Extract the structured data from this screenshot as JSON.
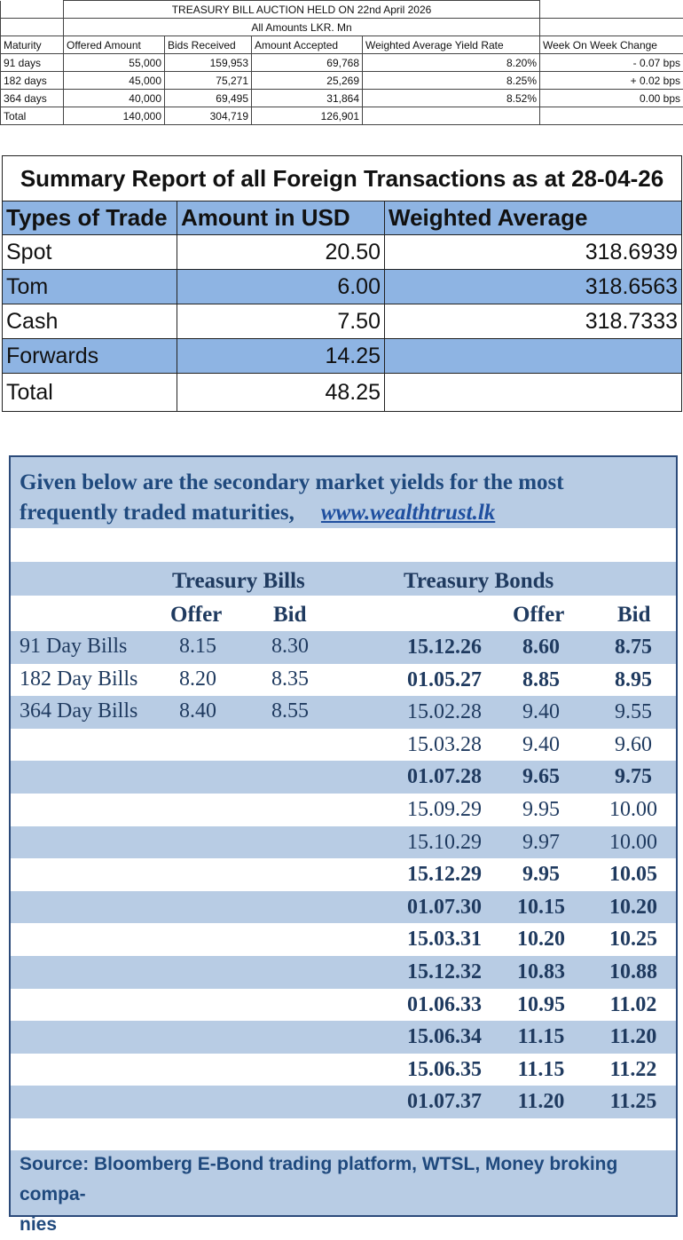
{
  "auction": {
    "title": "TREASURY BILL AUCTION HELD ON 22nd April 2026",
    "subtitle": "All Amounts LKR. Mn",
    "headers": [
      "Maturity",
      "Offered Amount",
      "Bids Received",
      "Amount Accepted",
      "Weighted Average Yield Rate",
      "Week On Week Change"
    ],
    "rows": [
      [
        "91 days",
        "55,000",
        "159,953",
        "69,768",
        "8.20%",
        "- 0.07 bps"
      ],
      [
        "182 days",
        "45,000",
        "75,271",
        "25,269",
        "8.25%",
        "+ 0.02 bps"
      ],
      [
        "364 days",
        "40,000",
        "69,495",
        "31,864",
        "8.52%",
        "0.00 bps"
      ],
      [
        "Total",
        "140,000",
        "304,719",
        "126,901",
        "",
        ""
      ]
    ]
  },
  "fx": {
    "title": "Summary Report of all Foreign Transactions as at 28-04-26",
    "headers": [
      "Types of Trade",
      "Amount in USD",
      "Weighted Average"
    ],
    "rows": [
      [
        "Spot",
        "20.50",
        "318.6939"
      ],
      [
        "Tom",
        "6.00",
        "318.6563"
      ],
      [
        "Cash",
        "7.50",
        "318.7333"
      ],
      [
        "Forwards",
        "14.25",
        ""
      ],
      [
        "Total",
        "48.25",
        ""
      ]
    ]
  },
  "secondary": {
    "intro_line1": "Given below are the secondary market yields for the most",
    "intro_line2": "frequently traded maturities,",
    "link": "www.wealthtrust.lk",
    "bills_heading": "Treasury Bills",
    "bonds_heading": "Treasury Bonds",
    "offer_label": "Offer",
    "bid_label": "Bid",
    "bills": [
      {
        "name": "91 Day Bills",
        "offer": "8.15",
        "bid": "8.30"
      },
      {
        "name": "182 Day Bills",
        "offer": "8.20",
        "bid": "8.35"
      },
      {
        "name": "364 Day Bills",
        "offer": "8.40",
        "bid": "8.55"
      }
    ],
    "bonds": [
      {
        "maturity": "15.12.26",
        "offer": "8.60",
        "bid": "8.75",
        "bold": true
      },
      {
        "maturity": "01.05.27",
        "offer": "8.85",
        "bid": "8.95",
        "bold": true
      },
      {
        "maturity": "15.02.28",
        "offer": "9.40",
        "bid": "9.55",
        "bold": false
      },
      {
        "maturity": "15.03.28",
        "offer": "9.40",
        "bid": "9.60",
        "bold": false
      },
      {
        "maturity": "01.07.28",
        "offer": "9.65",
        "bid": "9.75",
        "bold": true
      },
      {
        "maturity": "15.09.29",
        "offer": "9.95",
        "bid": "10.00",
        "bold": false
      },
      {
        "maturity": "15.10.29",
        "offer": "9.97",
        "bid": "10.00",
        "bold": false
      },
      {
        "maturity": "15.12.29",
        "offer": "9.95",
        "bid": "10.05",
        "bold": true
      },
      {
        "maturity": "01.07.30",
        "offer": "10.15",
        "bid": "10.20",
        "bold": true
      },
      {
        "maturity": "15.03.31",
        "offer": "10.20",
        "bid": "10.25",
        "bold": true
      },
      {
        "maturity": "15.12.32",
        "offer": "10.83",
        "bid": "10.88",
        "bold": true
      },
      {
        "maturity": "01.06.33",
        "offer": "10.95",
        "bid": "11.02",
        "bold": true
      },
      {
        "maturity": "15.06.34",
        "offer": "11.15",
        "bid": "11.20",
        "bold": true
      },
      {
        "maturity": "15.06.35",
        "offer": "11.15",
        "bid": "11.22",
        "bold": true
      },
      {
        "maturity": "01.07.37",
        "offer": "11.20",
        "bid": "11.25",
        "bold": true
      }
    ],
    "source_line1": "Source: Bloomberg E-Bond trading platform, WTSL, Money broking compa-",
    "source_line2": "nies"
  }
}
